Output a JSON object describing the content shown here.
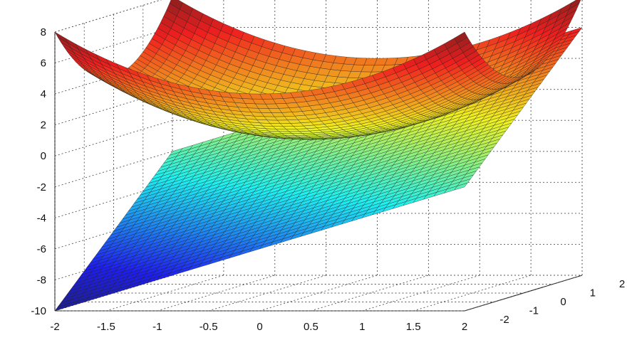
{
  "chart_data": {
    "type": "surface",
    "title": "",
    "xlabel": "",
    "ylabel": "",
    "zlabel": "",
    "xlim": [
      -2,
      2
    ],
    "ylim": [
      -2,
      2
    ],
    "zlim": [
      -10,
      8
    ],
    "x_ticks": [
      "-2",
      "-1.5",
      "-1",
      "-0.5",
      "0",
      "0.5",
      "1",
      "1.5",
      "2"
    ],
    "y_ticks": [
      "-2",
      "-1",
      "0",
      "1",
      "2"
    ],
    "z_ticks": [
      "8",
      "6",
      "4",
      "2",
      "0",
      "-2",
      "-4",
      "-6",
      "-8",
      "-10"
    ],
    "grid": true,
    "colormap": "jet",
    "surfaces": [
      {
        "shape": "paraboloid",
        "expression_values": "z = x^2 + y^2",
        "z_min": 0,
        "z_max": 8
      },
      {
        "shape": "plane",
        "expression_values": "z = 2x + 2y - 2",
        "z_min": -10,
        "z_max": 6
      }
    ]
  }
}
